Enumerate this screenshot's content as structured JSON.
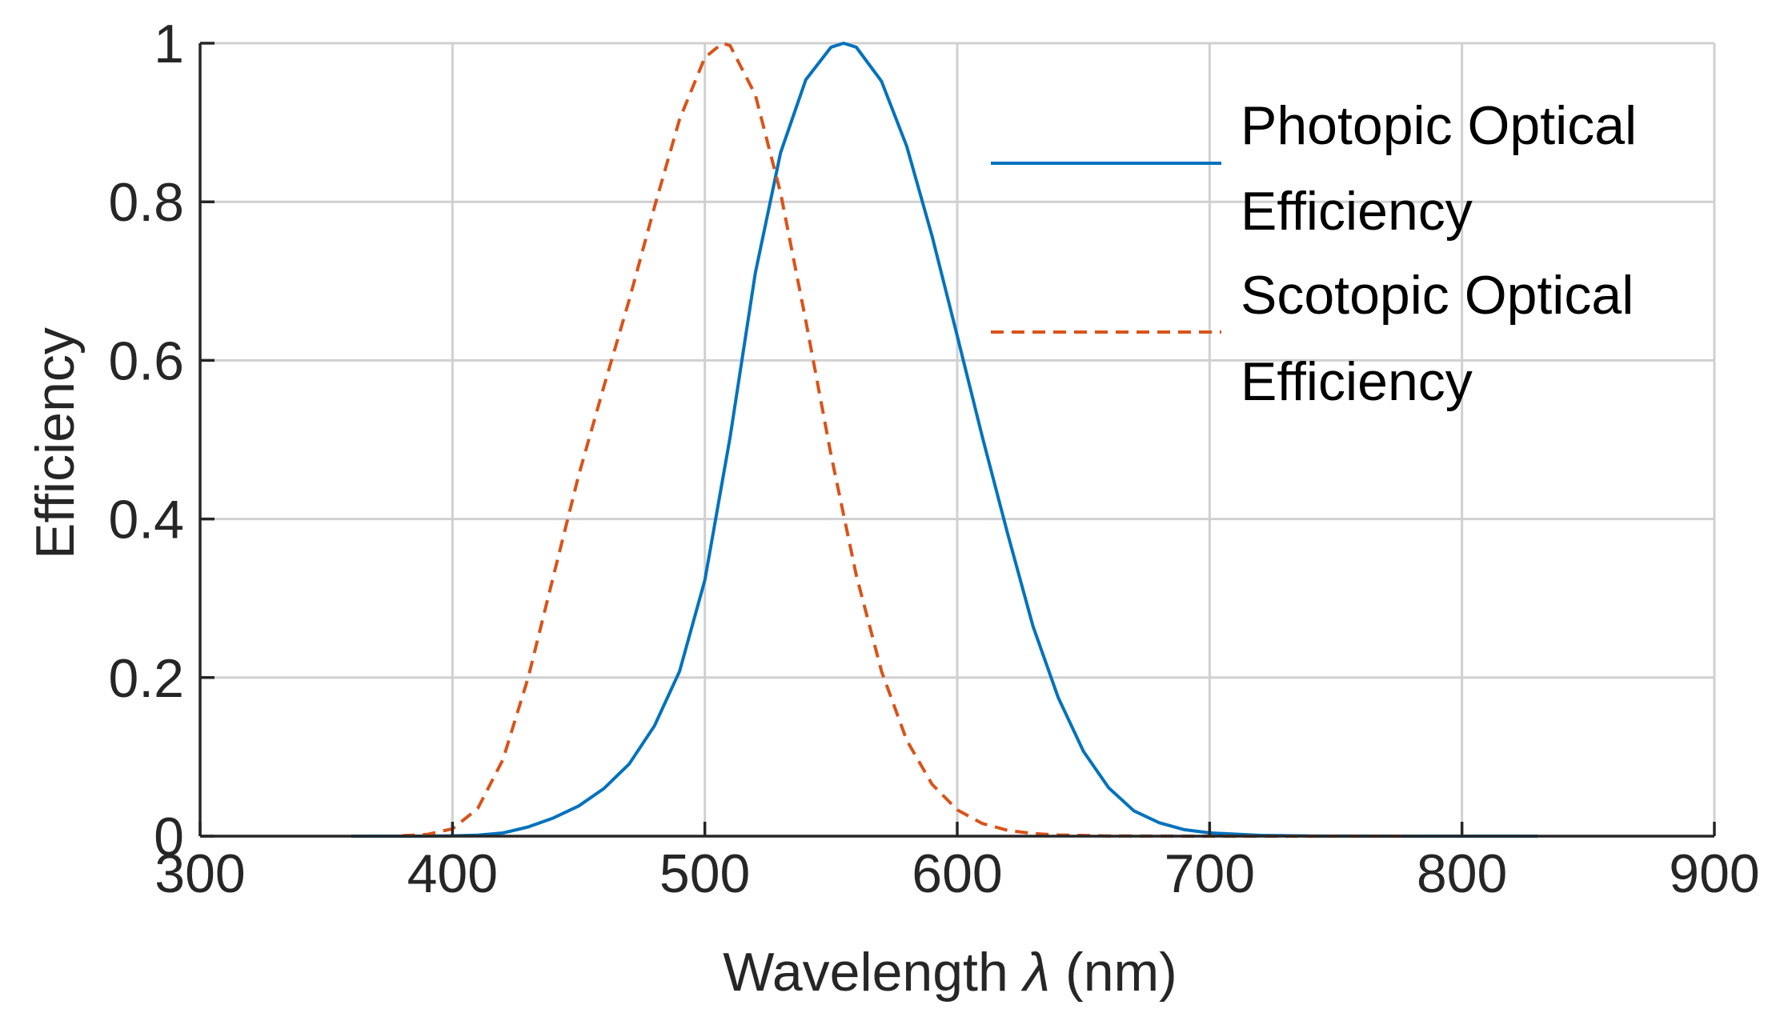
{
  "chart_data": {
    "type": "line",
    "title": "",
    "xlabel": "Wavelength",
    "xlabel_symbol": "λ",
    "xlabel_unit": "(nm)",
    "ylabel": "Efficiency",
    "xlim": [
      300,
      900
    ],
    "ylim": [
      0,
      1
    ],
    "xticks": [
      300,
      400,
      500,
      600,
      700,
      800,
      900
    ],
    "yticks": [
      0,
      0.2,
      0.4,
      0.6,
      0.8,
      1
    ],
    "xtick_labels": [
      "300",
      "400",
      "500",
      "600",
      "700",
      "800",
      "900"
    ],
    "ytick_labels": [
      "0",
      "0.2",
      "0.4",
      "0.6",
      "0.8",
      "1"
    ],
    "grid": true,
    "legend_position": "top-right",
    "series": [
      {
        "name": "Photopic Optical Efficiency",
        "legend_lines": [
          "Photopic Optical",
          "Efficiency"
        ],
        "color": "#0072BD",
        "style": "solid",
        "x": [
          360,
          380,
          400,
          410,
          420,
          430,
          440,
          450,
          460,
          470,
          480,
          490,
          500,
          510,
          520,
          530,
          540,
          550,
          555,
          560,
          570,
          580,
          590,
          600,
          610,
          620,
          630,
          640,
          650,
          660,
          670,
          680,
          690,
          700,
          720,
          740,
          760,
          780,
          800,
          830
        ],
        "values": [
          0.0,
          0.0,
          0.0004,
          0.0012,
          0.004,
          0.0116,
          0.023,
          0.038,
          0.06,
          0.091,
          0.139,
          0.208,
          0.323,
          0.503,
          0.71,
          0.862,
          0.954,
          0.995,
          1.0,
          0.995,
          0.952,
          0.87,
          0.757,
          0.631,
          0.503,
          0.381,
          0.265,
          0.175,
          0.107,
          0.061,
          0.032,
          0.017,
          0.0082,
          0.0041,
          0.001,
          0.0002,
          0.0001,
          0.0,
          0.0,
          0.0
        ]
      },
      {
        "name": "Scotopic Optical Efficiency",
        "legend_lines": [
          "Scotopic Optical",
          "Efficiency"
        ],
        "color": "#D95319",
        "style": "dashed",
        "x": [
          380,
          390,
          400,
          410,
          420,
          430,
          440,
          450,
          460,
          470,
          480,
          490,
          500,
          507,
          510,
          520,
          530,
          540,
          550,
          560,
          570,
          580,
          590,
          600,
          610,
          620,
          630,
          640,
          660,
          680,
          700,
          720,
          740,
          760,
          780
        ],
        "values": [
          0.0006,
          0.0022,
          0.0093,
          0.0348,
          0.0966,
          0.1998,
          0.3281,
          0.455,
          0.567,
          0.676,
          0.793,
          0.904,
          0.982,
          1.0,
          0.997,
          0.935,
          0.811,
          0.65,
          0.481,
          0.329,
          0.208,
          0.121,
          0.0655,
          0.0332,
          0.0159,
          0.0074,
          0.0033,
          0.0015,
          0.0003,
          0.0001,
          0.0,
          0.0,
          0.0,
          0.0,
          0.0
        ]
      }
    ]
  }
}
